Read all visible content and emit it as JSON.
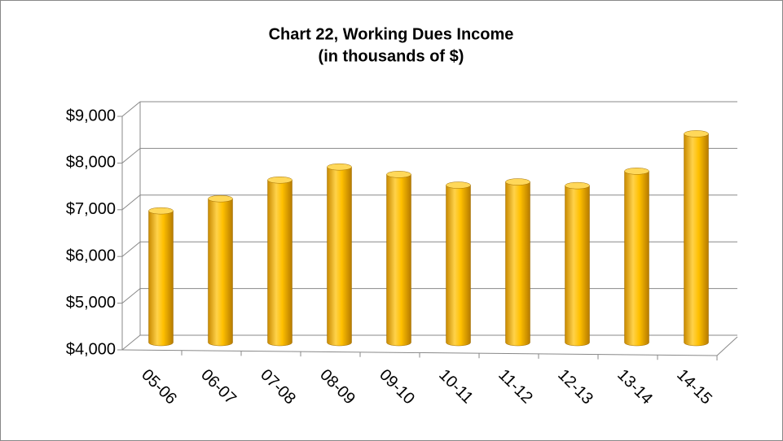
{
  "chart_data": {
    "type": "bar",
    "title": "Chart 22, Working Dues Income",
    "subtitle": "(in thousands of $)",
    "categories": [
      "05-06",
      "06-07",
      "07-08",
      "08-09",
      "09-10",
      "10-11",
      "11-12",
      "12-13",
      "13-14",
      "14-15"
    ],
    "values": [
      6820,
      7080,
      7480,
      7760,
      7600,
      7370,
      7440,
      7360,
      7670,
      8470
    ],
    "color": "#ffc000",
    "ylim": [
      4000,
      9000
    ],
    "yticks": [
      {
        "value": 4000,
        "label": "$4,000"
      },
      {
        "value": 5000,
        "label": "$5,000"
      },
      {
        "value": 6000,
        "label": "$6,000"
      },
      {
        "value": 7000,
        "label": "$7,000"
      },
      {
        "value": 8000,
        "label": "$8,000"
      },
      {
        "value": 9000,
        "label": "$9,000"
      }
    ],
    "grid": true
  }
}
